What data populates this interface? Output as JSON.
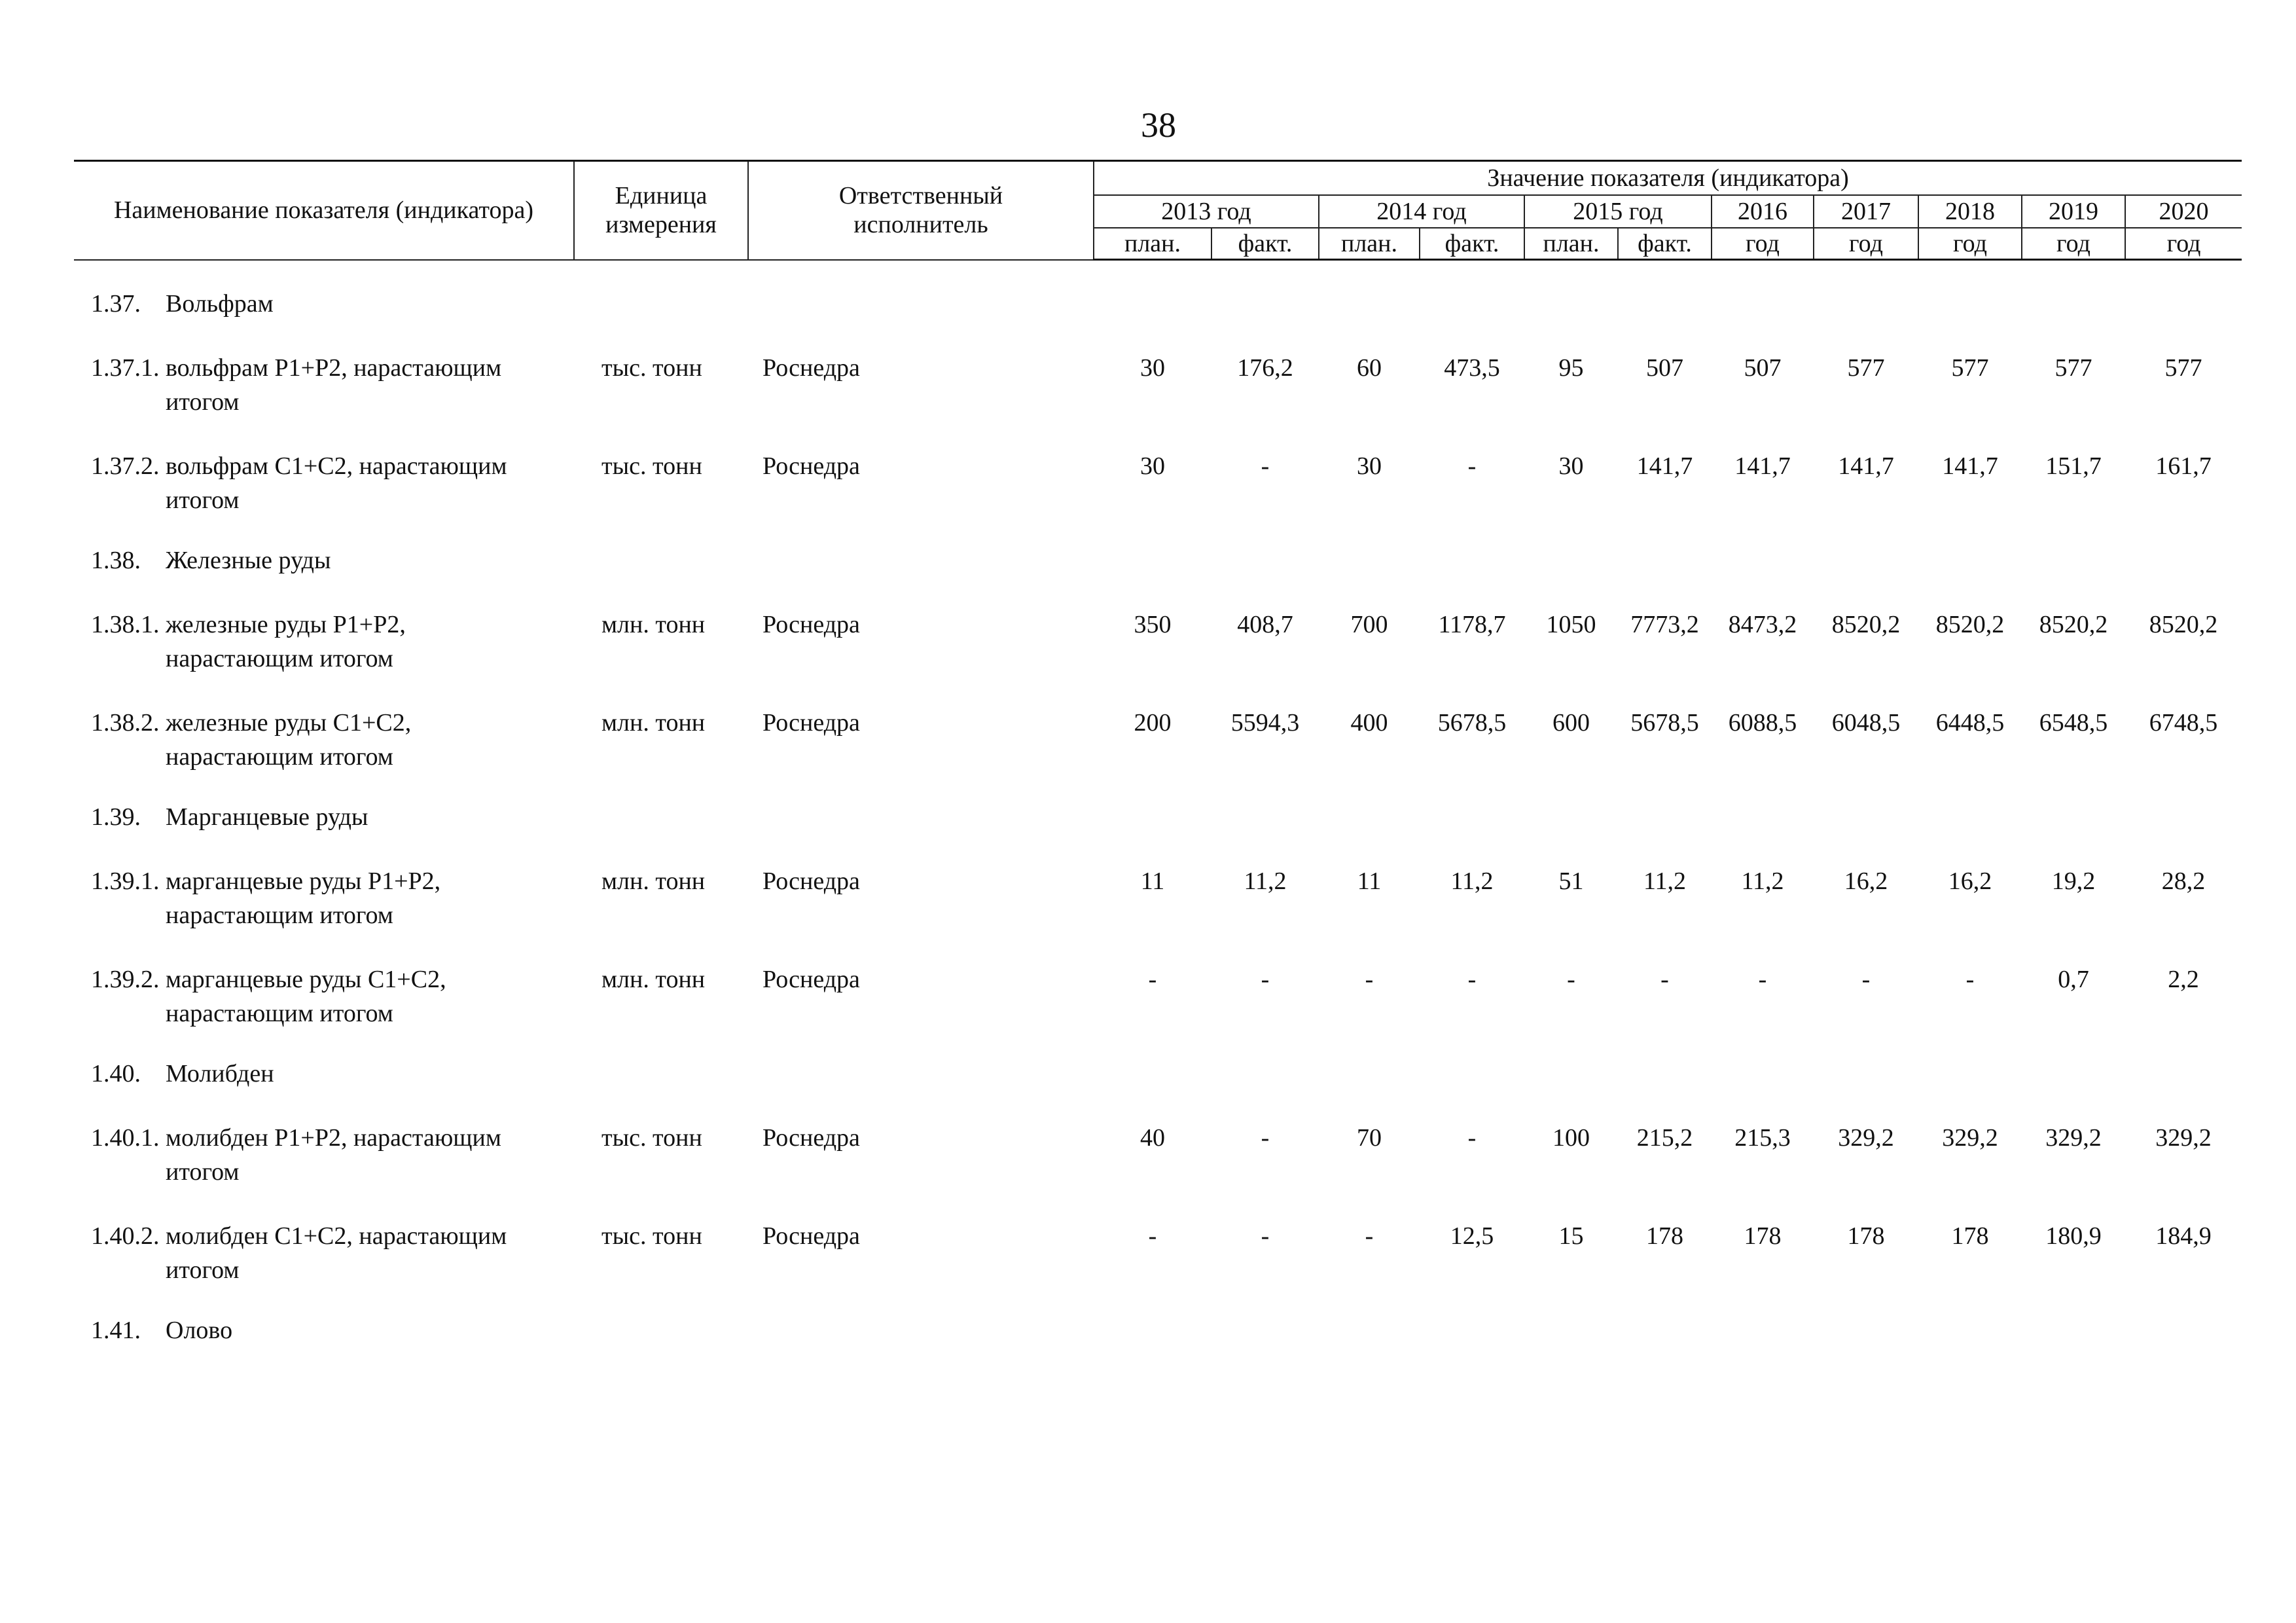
{
  "page_number": "38",
  "header": {
    "name": "Наименование показателя (индикатора)",
    "unit_line1": "Единица",
    "unit_line2": "измерения",
    "executor_line1": "Ответственный",
    "executor_line2": "исполнитель",
    "value_group": "Значение показателя (индикатора)",
    "years": [
      "2013 год",
      "2014 год",
      "2015 год"
    ],
    "single_years": [
      "2016",
      "2017",
      "2018",
      "2019",
      "2020"
    ],
    "plan": "план.",
    "fact": "факт.",
    "god": "год"
  },
  "rows": [
    {
      "type": "section",
      "num": "1.37.",
      "name": "Вольфрам"
    },
    {
      "type": "item",
      "num": "1.37.1.",
      "name": "вольфрам Р1+Р2, нарастающим итогом",
      "unit": "тыс. тонн",
      "executor": "Роснедра",
      "values": [
        "30",
        "176,2",
        "60",
        "473,5",
        "95",
        "507",
        "507",
        "577",
        "577",
        "577",
        "577"
      ]
    },
    {
      "type": "item",
      "num": "1.37.2.",
      "name": "вольфрам С1+С2, нарастающим итогом",
      "unit": "тыс. тонн",
      "executor": "Роснедра",
      "values": [
        "30",
        "-",
        "30",
        "-",
        "30",
        "141,7",
        "141,7",
        "141,7",
        "141,7",
        "151,7",
        "161,7"
      ]
    },
    {
      "type": "section",
      "num": "1.38.",
      "name": "Железные руды"
    },
    {
      "type": "item",
      "num": "1.38.1.",
      "name": "железные руды Р1+Р2, нарастающим итогом",
      "unit": "млн. тонн",
      "executor": "Роснедра",
      "values": [
        "350",
        "408,7",
        "700",
        "1178,7",
        "1050",
        "7773,2",
        "8473,2",
        "8520,2",
        "8520,2",
        "8520,2",
        "8520,2"
      ]
    },
    {
      "type": "item",
      "num": "1.38.2.",
      "name": "железные руды С1+С2, нарастающим итогом",
      "unit": "млн. тонн",
      "executor": "Роснедра",
      "values": [
        "200",
        "5594,3",
        "400",
        "5678,5",
        "600",
        "5678,5",
        "6088,5",
        "6048,5",
        "6448,5",
        "6548,5",
        "6748,5"
      ]
    },
    {
      "type": "section",
      "num": "1.39.",
      "name": "Марганцевые руды"
    },
    {
      "type": "item",
      "num": "1.39.1.",
      "name": "марганцевые руды Р1+Р2, нарастающим итогом",
      "unit": "млн. тонн",
      "executor": "Роснедра",
      "values": [
        "11",
        "11,2",
        "11",
        "11,2",
        "51",
        "11,2",
        "11,2",
        "16,2",
        "16,2",
        "19,2",
        "28,2"
      ]
    },
    {
      "type": "item",
      "num": "1.39.2.",
      "name": "марганцевые руды С1+С2, нарастающим итогом",
      "unit": "млн. тонн",
      "executor": "Роснедра",
      "values": [
        "-",
        "-",
        "-",
        "-",
        "-",
        "-",
        "-",
        "-",
        "-",
        "0,7",
        "2,2"
      ]
    },
    {
      "type": "section",
      "num": "1.40.",
      "name": "Молибден"
    },
    {
      "type": "item",
      "num": "1.40.1.",
      "name": "молибден Р1+Р2, нарастающим итогом",
      "unit": "тыс. тонн",
      "executor": "Роснедра",
      "values": [
        "40",
        "-",
        "70",
        "-",
        "100",
        "215,2",
        "215,3",
        "329,2",
        "329,2",
        "329,2",
        "329,2"
      ]
    },
    {
      "type": "item",
      "num": "1.40.2.",
      "name": "молибден С1+С2, нарастающим итогом",
      "unit": "тыс. тонн",
      "executor": "Роснедра",
      "values": [
        "-",
        "-",
        "-",
        "12,5",
        "15",
        "178",
        "178",
        "178",
        "178",
        "180,9",
        "184,9"
      ]
    },
    {
      "type": "section",
      "num": "1.41.",
      "name": "Олово"
    }
  ]
}
